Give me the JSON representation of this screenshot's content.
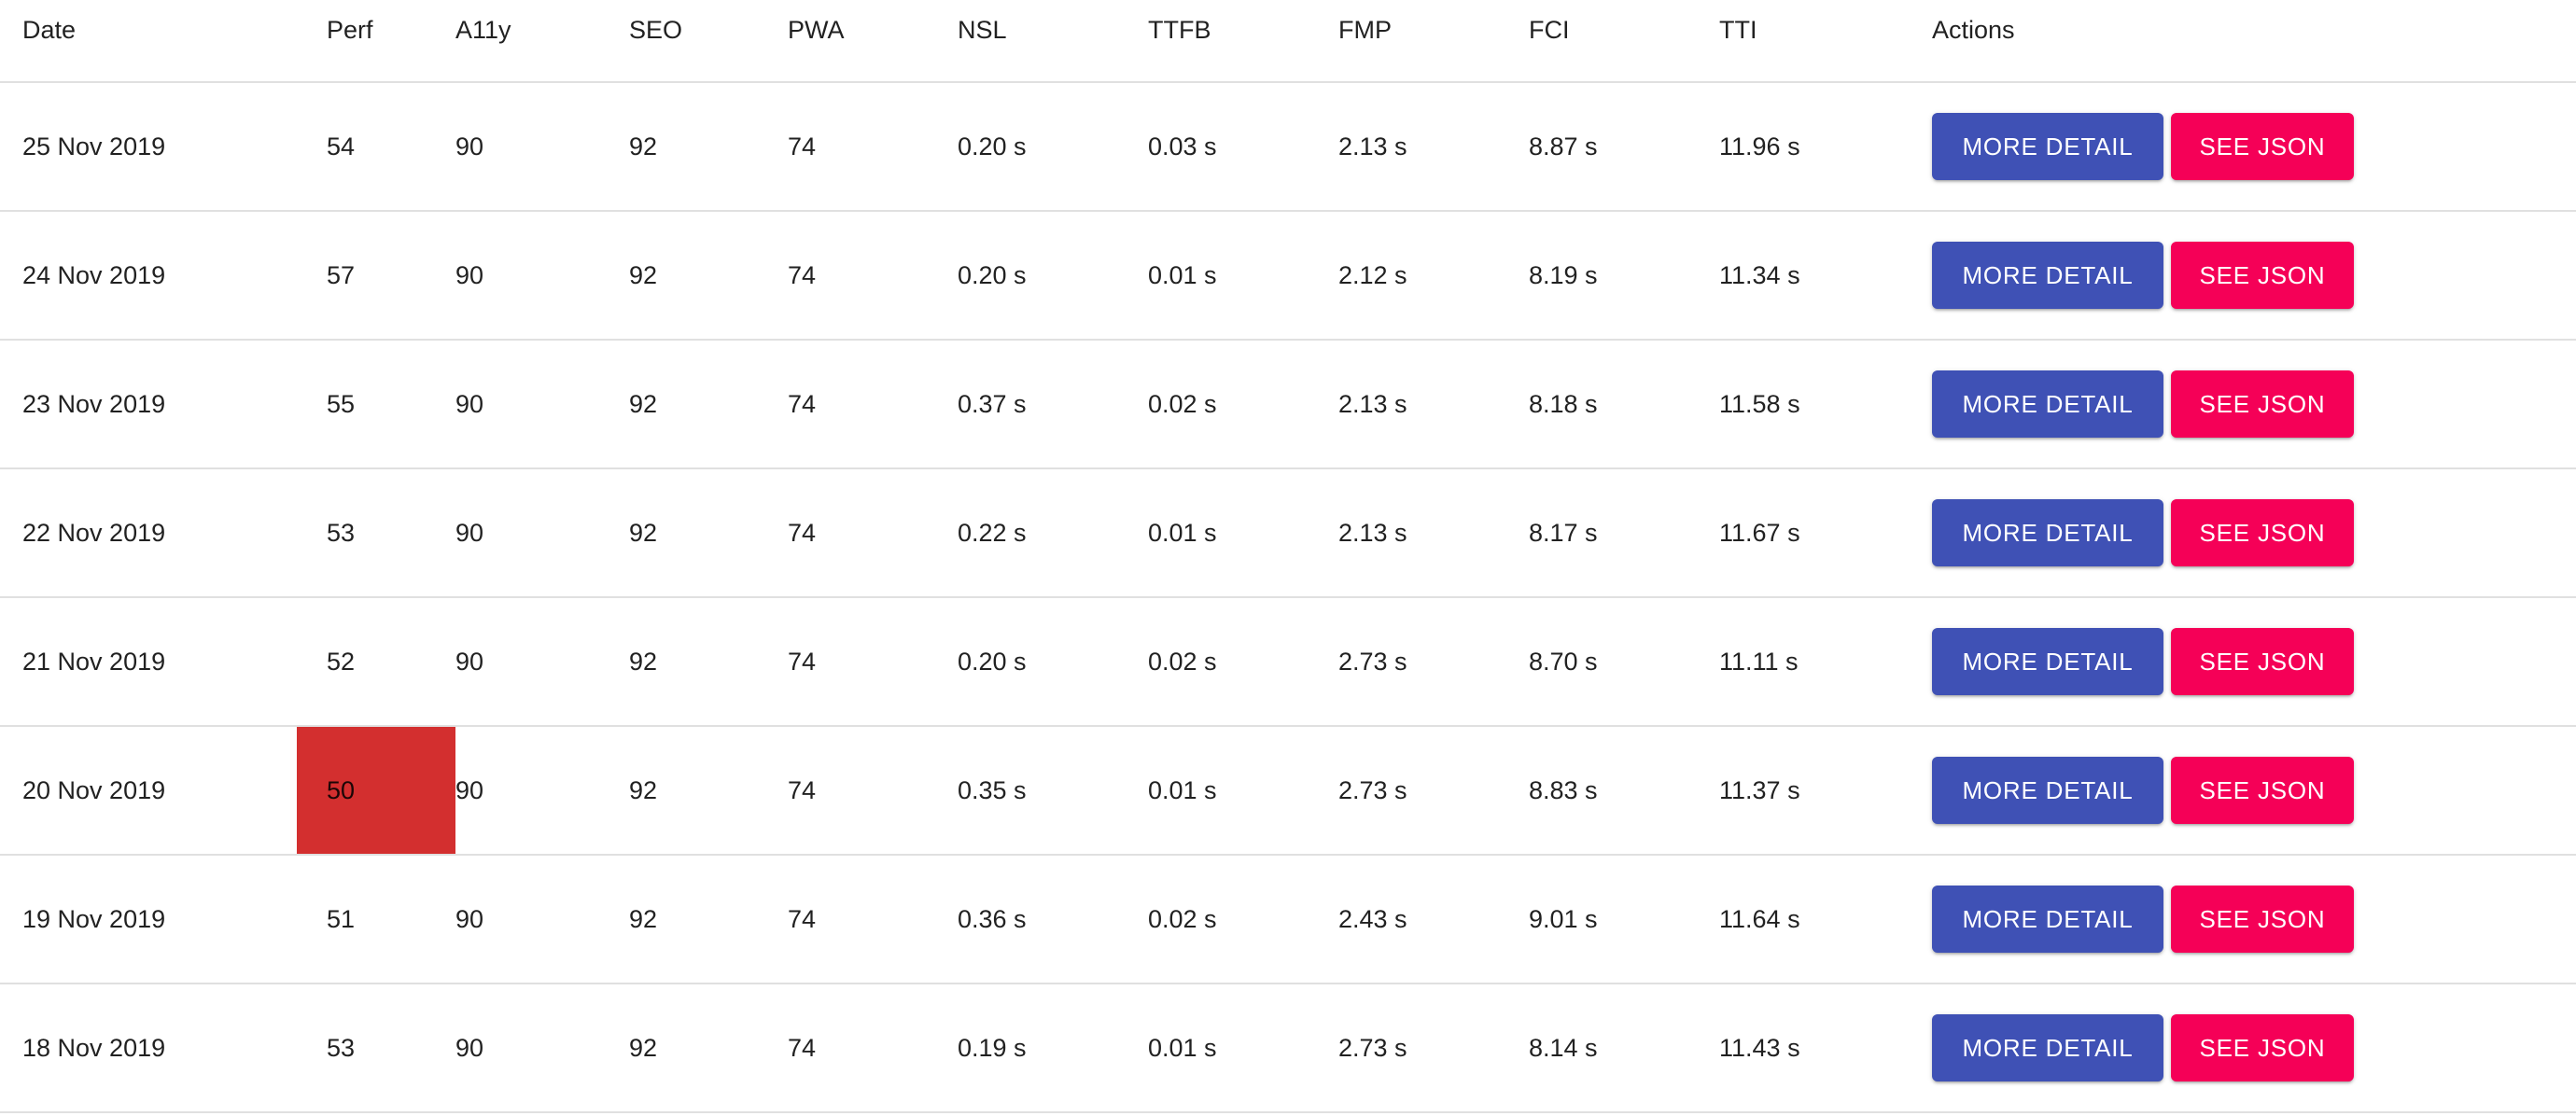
{
  "table": {
    "headers": {
      "date": "Date",
      "perf": "Perf",
      "a11y": "A11y",
      "seo": "SEO",
      "pwa": "PWA",
      "nsl": "NSL",
      "ttfb": "TTFB",
      "fmp": "FMP",
      "fci": "FCI",
      "tti": "TTI",
      "actions": "Actions"
    },
    "actions": {
      "more_detail_label": "MORE DETAIL",
      "see_json_label": "SEE JSON"
    },
    "highlight_color": "#d32f2f",
    "rows": [
      {
        "date": "25 Nov 2019",
        "perf": "54",
        "a11y": "90",
        "seo": "92",
        "pwa": "74",
        "nsl": "0.20 s",
        "ttfb": "0.03 s",
        "fmp": "2.13 s",
        "fci": "8.87 s",
        "tti": "11.96 s",
        "perf_highlight": false
      },
      {
        "date": "24 Nov 2019",
        "perf": "57",
        "a11y": "90",
        "seo": "92",
        "pwa": "74",
        "nsl": "0.20 s",
        "ttfb": "0.01 s",
        "fmp": "2.12 s",
        "fci": "8.19 s",
        "tti": "11.34 s",
        "perf_highlight": false
      },
      {
        "date": "23 Nov 2019",
        "perf": "55",
        "a11y": "90",
        "seo": "92",
        "pwa": "74",
        "nsl": "0.37 s",
        "ttfb": "0.02 s",
        "fmp": "2.13 s",
        "fci": "8.18 s",
        "tti": "11.58 s",
        "perf_highlight": false
      },
      {
        "date": "22 Nov 2019",
        "perf": "53",
        "a11y": "90",
        "seo": "92",
        "pwa": "74",
        "nsl": "0.22 s",
        "ttfb": "0.01 s",
        "fmp": "2.13 s",
        "fci": "8.17 s",
        "tti": "11.67 s",
        "perf_highlight": false
      },
      {
        "date": "21 Nov 2019",
        "perf": "52",
        "a11y": "90",
        "seo": "92",
        "pwa": "74",
        "nsl": "0.20 s",
        "ttfb": "0.02 s",
        "fmp": "2.73 s",
        "fci": "8.70 s",
        "tti": "11.11 s",
        "perf_highlight": false
      },
      {
        "date": "20 Nov 2019",
        "perf": "50",
        "a11y": "90",
        "seo": "92",
        "pwa": "74",
        "nsl": "0.35 s",
        "ttfb": "0.01 s",
        "fmp": "2.73 s",
        "fci": "8.83 s",
        "tti": "11.37 s",
        "perf_highlight": true
      },
      {
        "date": "19 Nov 2019",
        "perf": "51",
        "a11y": "90",
        "seo": "92",
        "pwa": "74",
        "nsl": "0.36 s",
        "ttfb": "0.02 s",
        "fmp": "2.43 s",
        "fci": "9.01 s",
        "tti": "11.64 s",
        "perf_highlight": false
      },
      {
        "date": "18 Nov 2019",
        "perf": "53",
        "a11y": "90",
        "seo": "92",
        "pwa": "74",
        "nsl": "0.19 s",
        "ttfb": "0.01 s",
        "fmp": "2.73 s",
        "fci": "8.14 s",
        "tti": "11.43 s",
        "perf_highlight": false
      }
    ]
  }
}
